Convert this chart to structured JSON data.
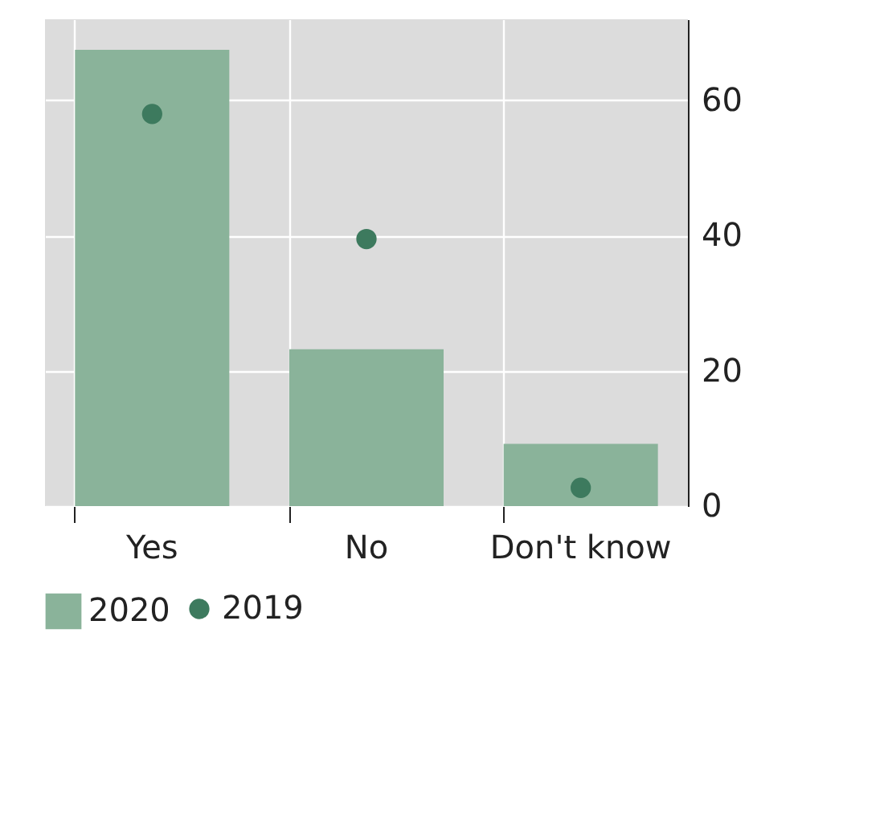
{
  "chart_data": {
    "type": "bar",
    "categories": [
      "Yes",
      "No",
      "Don't know"
    ],
    "series": [
      {
        "name": "2019",
        "type": "scatter",
        "color": "#3d7a5e",
        "values": [
          58,
          39.5,
          2.7
        ]
      },
      {
        "name": "2020",
        "color": "#8ab39a",
        "values": [
          67.5,
          23.2,
          9.2
        ]
      }
    ],
    "ylim": [
      0,
      72
    ],
    "yticks": [
      0,
      20,
      40,
      60
    ],
    "grid": true,
    "legend": "bottom",
    "marker": "circle"
  }
}
